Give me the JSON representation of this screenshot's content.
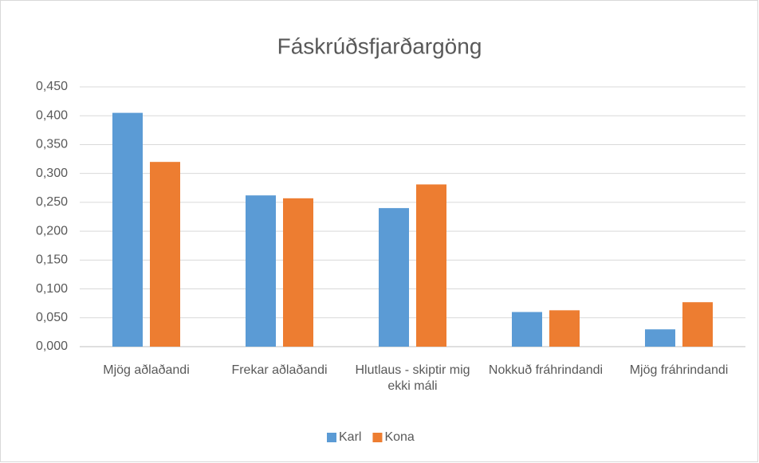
{
  "chart_data": {
    "type": "bar",
    "title": "Fáskrúðsfjarðargöng",
    "categories": [
      "Mjög aðlaðandi",
      "Frekar aðlaðandi",
      "Hlutlaus - skiptir mig ekki máli",
      "Nokkuð fráhrindandi",
      "Mjög fráhrindandi"
    ],
    "series": [
      {
        "name": "Karl",
        "color": "#5b9bd5",
        "values": [
          0.405,
          0.262,
          0.24,
          0.06,
          0.03
        ]
      },
      {
        "name": "Kona",
        "color": "#ed7d31",
        "values": [
          0.32,
          0.257,
          0.281,
          0.063,
          0.077
        ]
      }
    ],
    "ylim": [
      0,
      0.45
    ],
    "yticks": [
      {
        "value": 0,
        "label": "0,000"
      },
      {
        "value": 0.05,
        "label": "0,050"
      },
      {
        "value": 0.1,
        "label": "0,100"
      },
      {
        "value": 0.15,
        "label": "0,150"
      },
      {
        "value": 0.2,
        "label": "0,200"
      },
      {
        "value": 0.25,
        "label": "0,250"
      },
      {
        "value": 0.3,
        "label": "0,300"
      },
      {
        "value": 0.35,
        "label": "0,350"
      },
      {
        "value": 0.4,
        "label": "0,400"
      },
      {
        "value": 0.45,
        "label": "0,450"
      }
    ],
    "grid": true,
    "legend": "bottom"
  }
}
